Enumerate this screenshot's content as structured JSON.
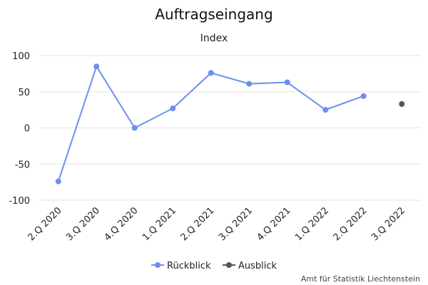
{
  "chart_data": {
    "type": "line",
    "title": "Auftragseingang",
    "subtitle": "Index",
    "categories": [
      "2.Q 2020",
      "3.Q 2020",
      "4.Q 2020",
      "1.Q 2021",
      "2.Q 2021",
      "3.Q 2021",
      "4.Q 2021",
      "1.Q 2022",
      "2.Q 2022",
      "3.Q 2022"
    ],
    "series": [
      {
        "name": "Rückblick",
        "color": "#6b8ff0",
        "values": [
          -74,
          85,
          0,
          27,
          76,
          61,
          63,
          25,
          44,
          null
        ]
      },
      {
        "name": "Ausblick",
        "color": "#555555",
        "values": [
          null,
          null,
          null,
          null,
          null,
          null,
          null,
          null,
          null,
          33
        ]
      }
    ],
    "ylim": [
      -100,
      100
    ],
    "yticks": [
      100,
      50,
      0,
      -50,
      -100
    ],
    "grid": true,
    "legend_position": "bottom-center",
    "credit": "Amt für Statistik Liechtenstein"
  }
}
